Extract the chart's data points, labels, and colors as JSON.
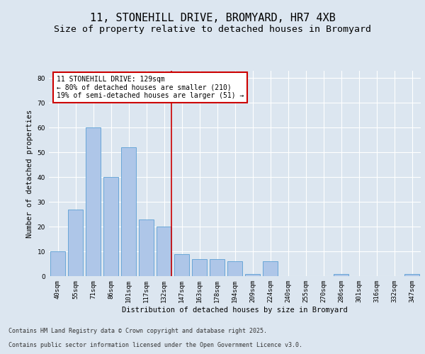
{
  "title_line1": "11, STONEHILL DRIVE, BROMYARD, HR7 4XB",
  "title_line2": "Size of property relative to detached houses in Bromyard",
  "xlabel": "Distribution of detached houses by size in Bromyard",
  "ylabel": "Number of detached properties",
  "categories": [
    "40sqm",
    "55sqm",
    "71sqm",
    "86sqm",
    "101sqm",
    "117sqm",
    "132sqm",
    "147sqm",
    "163sqm",
    "178sqm",
    "194sqm",
    "209sqm",
    "224sqm",
    "240sqm",
    "255sqm",
    "270sqm",
    "286sqm",
    "301sqm",
    "316sqm",
    "332sqm",
    "347sqm"
  ],
  "values": [
    10,
    27,
    60,
    40,
    52,
    23,
    20,
    9,
    7,
    7,
    6,
    1,
    6,
    0,
    0,
    0,
    1,
    0,
    0,
    0,
    1
  ],
  "bar_color": "#aec6e8",
  "bar_edge_color": "#5a9fd4",
  "property_line_index": 6,
  "property_line_color": "#cc0000",
  "annotation_text": "11 STONEHILL DRIVE: 129sqm\n← 80% of detached houses are smaller (210)\n19% of semi-detached houses are larger (51) →",
  "annotation_box_color": "#ffffff",
  "annotation_box_edge": "#cc0000",
  "background_color": "#dce6f0",
  "plot_background": "#dce6f0",
  "ylim": [
    0,
    83
  ],
  "yticks": [
    0,
    10,
    20,
    30,
    40,
    50,
    60,
    70,
    80
  ],
  "footer_line1": "Contains HM Land Registry data © Crown copyright and database right 2025.",
  "footer_line2": "Contains public sector information licensed under the Open Government Licence v3.0.",
  "title_fontsize": 11,
  "subtitle_fontsize": 9.5,
  "label_fontsize": 7.5,
  "tick_fontsize": 6.5,
  "annotation_fontsize": 7,
  "footer_fontsize": 6
}
